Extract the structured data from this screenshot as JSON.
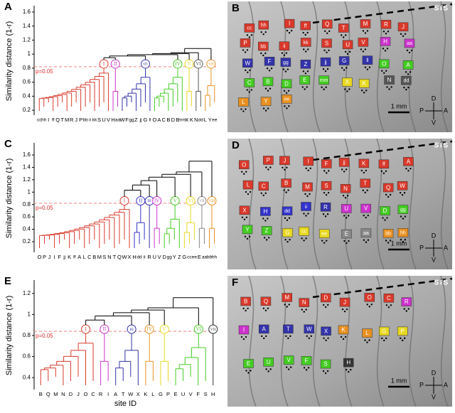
{
  "panels": [
    {
      "letter": "A",
      "image_letter": "B",
      "ylabel": "Similarity  distance  (1-r)",
      "ylim": [
        0.15,
        1.65
      ],
      "yticks": [
        0.2,
        0.4,
        0.6,
        0.8,
        1,
        1.2,
        1.4,
        1.6
      ],
      "threshold": 0.82,
      "threshold_label": "p=0.05",
      "root_height": 1.08,
      "clusters": [
        {
          "label": "I",
          "color": "#d9392b",
          "height": 0.86,
          "leaves": [
            "cc",
            "hh",
            "I",
            "ff",
            "Q",
            "T",
            "M",
            "R",
            "J",
            "P",
            "bb",
            "ii",
            "kk",
            "S",
            "U",
            "V"
          ]
        },
        {
          "label": "II",
          "color": "#cc33cc",
          "height": 0.86,
          "leaves": [
            "H",
            "aa"
          ]
        },
        {
          "label": "III",
          "color": "#3333aa",
          "height": 0.86,
          "leaves": [
            "W",
            "F",
            "gg",
            "Z",
            "jj",
            "G",
            "ll"
          ]
        },
        {
          "label": "IV",
          "color": "#44cc22",
          "height": 0.86,
          "leaves": [
            "O",
            "A",
            "C",
            "B",
            "D",
            "E",
            "mm"
          ]
        },
        {
          "label": "V",
          "color": "#e8d820",
          "height": 0.86,
          "leaves": [
            "X",
            "K"
          ]
        },
        {
          "label": "VI",
          "color": "#555555",
          "height": 0.86,
          "leaves": [
            "N",
            "dd"
          ]
        },
        {
          "label": "VII",
          "color": "#e89020",
          "height": 0.86,
          "leaves": [
            "L",
            "Y",
            "ee"
          ]
        }
      ],
      "image_texts": {
        "region": "STS",
        "scale": "1 mm",
        "posterior": "P",
        "anterior": "A",
        "dorsal": "D",
        "ventral": "V"
      }
    },
    {
      "letter": "C",
      "image_letter": "D",
      "ylabel": "Similarity  distance  (1-r)",
      "ylim": [
        0.05,
        1.75
      ],
      "yticks": [
        0.2,
        0.4,
        0.6,
        0.8,
        1,
        1.2,
        1.4,
        1.6
      ],
      "threshold": 0.82,
      "threshold_label": "p=0.05",
      "root_height": 1.5,
      "clusters": [
        {
          "label": "I",
          "color": "#d9392b",
          "height": 0.86,
          "leaves": [
            "O",
            "P",
            "J",
            "I",
            "F",
            "jj",
            "K",
            "ff",
            "A",
            "L",
            "C",
            "B",
            "M",
            "S",
            "N",
            "T",
            "Q",
            "W",
            "X"
          ]
        },
        {
          "label": "II",
          "color": "#3333cc",
          "height": 0.86,
          "leaves": [
            "H",
            "dd",
            "ii"
          ]
        },
        {
          "label": "III",
          "color": "#3333aa",
          "height": 0.86,
          "leaves": [
            "R"
          ]
        },
        {
          "label": "IV",
          "color": "#cc33cc",
          "height": 0.86,
          "leaves": [
            "U",
            "V"
          ]
        },
        {
          "label": "V",
          "color": "#44cc22",
          "height": 0.86,
          "leaves": [
            "D",
            "gg",
            "Y",
            "Z"
          ]
        },
        {
          "label": "VI",
          "color": "#e8d820",
          "height": 0.86,
          "leaves": [
            "G",
            "cc",
            "ee"
          ]
        },
        {
          "label": "VII",
          "color": "#888888",
          "height": 0.86,
          "leaves": [
            "E",
            "aa"
          ]
        },
        {
          "label": "VIII",
          "color": "#e89020",
          "height": 0.86,
          "leaves": [
            "bb",
            "hh"
          ]
        }
      ],
      "image_texts": {
        "region": "STS",
        "scale": "1 mm",
        "posterior": "P",
        "anterior": "A",
        "dorsal": "D",
        "ventral": "V"
      }
    },
    {
      "letter": "E",
      "image_letter": "F",
      "ylabel": "Similarity  distance  (1-r)",
      "xlabel": "site  ID",
      "ylim": [
        0.3,
        1.3
      ],
      "yticks": [
        0.4,
        0.6,
        0.8,
        1,
        1.2
      ],
      "threshold": 0.84,
      "threshold_label": "p=0.05",
      "root_height": 1.16,
      "clusters": [
        {
          "label": "I",
          "color": "#d9392b",
          "height": 0.86,
          "leaves": [
            "B",
            "Q",
            "M",
            "N",
            "D",
            "J",
            "O",
            "C"
          ]
        },
        {
          "label": "II",
          "color": "#cc33cc",
          "height": 0.86,
          "leaves": [
            "R",
            "I"
          ]
        },
        {
          "label": "III",
          "color": "#3333aa",
          "height": 0.86,
          "leaves": [
            "A",
            "T",
            "W",
            "X"
          ]
        },
        {
          "label": "IV",
          "color": "#e89020",
          "height": 0.86,
          "leaves": [
            "K",
            "L"
          ]
        },
        {
          "label": "V",
          "color": "#e8d820",
          "height": 0.86,
          "leaves": [
            "G",
            "P"
          ]
        },
        {
          "label": "VI",
          "color": "#44cc22",
          "height": 0.86,
          "leaves": [
            "E",
            "U",
            "V",
            "F",
            "S"
          ]
        },
        {
          "label": "VII",
          "color": "#333333",
          "height": 0.86,
          "leaves": [
            "H"
          ]
        }
      ],
      "image_texts": {
        "region": "STS",
        "scale": "1 mm",
        "posterior": "P",
        "anterior": "A",
        "dorsal": "D",
        "ventral": "V"
      }
    }
  ]
}
